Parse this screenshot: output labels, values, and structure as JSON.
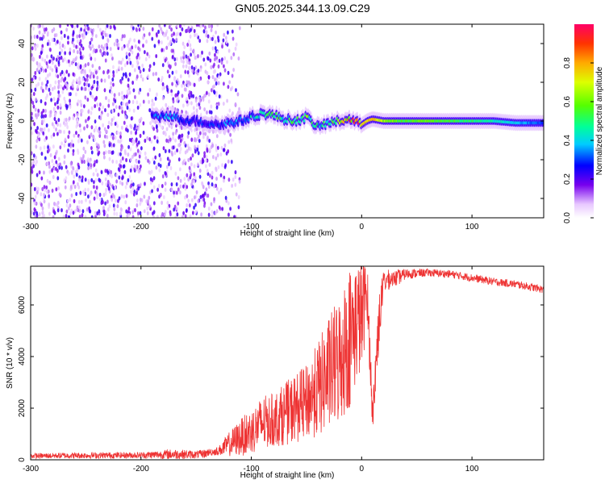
{
  "title": "GN05.2025.344.13.09.C29",
  "chart_data": [
    {
      "type": "heatmap",
      "xlabel": "Height of straight line (km)",
      "ylabel": "Frequency (Hz)",
      "xlim": [
        -300,
        165
      ],
      "ylim": [
        -50,
        50
      ],
      "xticks": [
        -300,
        -200,
        -100,
        0,
        100
      ],
      "yticks": [
        -40,
        -20,
        0,
        20,
        40
      ],
      "signal_track": {
        "x": [
          -185,
          -175,
          -165,
          -150,
          -130,
          -120,
          -110,
          -100,
          -90,
          -80,
          -70,
          -60,
          -50,
          -40,
          -30,
          -20,
          -10,
          -5,
          0,
          5,
          10,
          20,
          40,
          60,
          80,
          100,
          120,
          140,
          165
        ],
        "frequency": [
          2,
          3,
          1,
          0,
          -2,
          -1,
          0,
          2,
          4,
          3,
          1,
          0,
          2,
          -3,
          -1,
          0,
          1,
          0,
          -2,
          0,
          1,
          0,
          0,
          0,
          0,
          0,
          0,
          -1,
          -1
        ],
        "amplitude": [
          0.3,
          0.35,
          0.3,
          0.25,
          0.3,
          0.35,
          0.35,
          0.4,
          0.45,
          0.5,
          0.45,
          0.5,
          0.55,
          0.45,
          0.5,
          0.6,
          0.8,
          0.95,
          0.7,
          0.75,
          0.85,
          0.65,
          0.55,
          0.6,
          0.55,
          0.5,
          0.45,
          0.4,
          0.3
        ]
      },
      "noise_region_x": [
        -300,
        -130
      ],
      "colorbar": {
        "label": "Normalized spectral amplitude",
        "range": [
          0,
          1
        ],
        "ticks": [
          "0.0",
          "0.2",
          "0.4",
          "0.6",
          "0.8"
        ]
      }
    },
    {
      "type": "line",
      "xlabel": "Height of straight line (km)",
      "ylabel": "SNR (10 * v/v)",
      "xlim": [
        -300,
        165
      ],
      "ylim": [
        0,
        7500
      ],
      "xticks": [
        -300,
        -200,
        -100,
        0,
        100
      ],
      "yticks": [
        0,
        2000,
        4000,
        6000
      ],
      "series": [
        {
          "name": "SNR",
          "color": "#ee3333",
          "x": [
            -300,
            -250,
            -200,
            -170,
            -150,
            -130,
            -120,
            -110,
            -100,
            -90,
            -80,
            -70,
            -60,
            -50,
            -40,
            -30,
            -20,
            -10,
            -5,
            0,
            5,
            10,
            15,
            20,
            30,
            40,
            60,
            80,
            100,
            120,
            140,
            165
          ],
          "values": [
            150,
            170,
            180,
            220,
            200,
            300,
            500,
            700,
            900,
            1200,
            1300,
            1500,
            1700,
            1900,
            2300,
            2800,
            3300,
            4200,
            4800,
            5000,
            6300,
            1500,
            4800,
            6800,
            7000,
            7200,
            7250,
            7200,
            7050,
            6900,
            6800,
            6600
          ],
          "noise_amplitude": [
            100,
            120,
            120,
            200,
            150,
            200,
            600,
            900,
            1100,
            1300,
            1300,
            1500,
            1700,
            1800,
            2300,
            2800,
            3200,
            3500,
            3000,
            2800,
            1500,
            900,
            1500,
            600,
            350,
            200,
            150,
            150,
            150,
            150,
            150,
            150
          ]
        }
      ]
    }
  ]
}
